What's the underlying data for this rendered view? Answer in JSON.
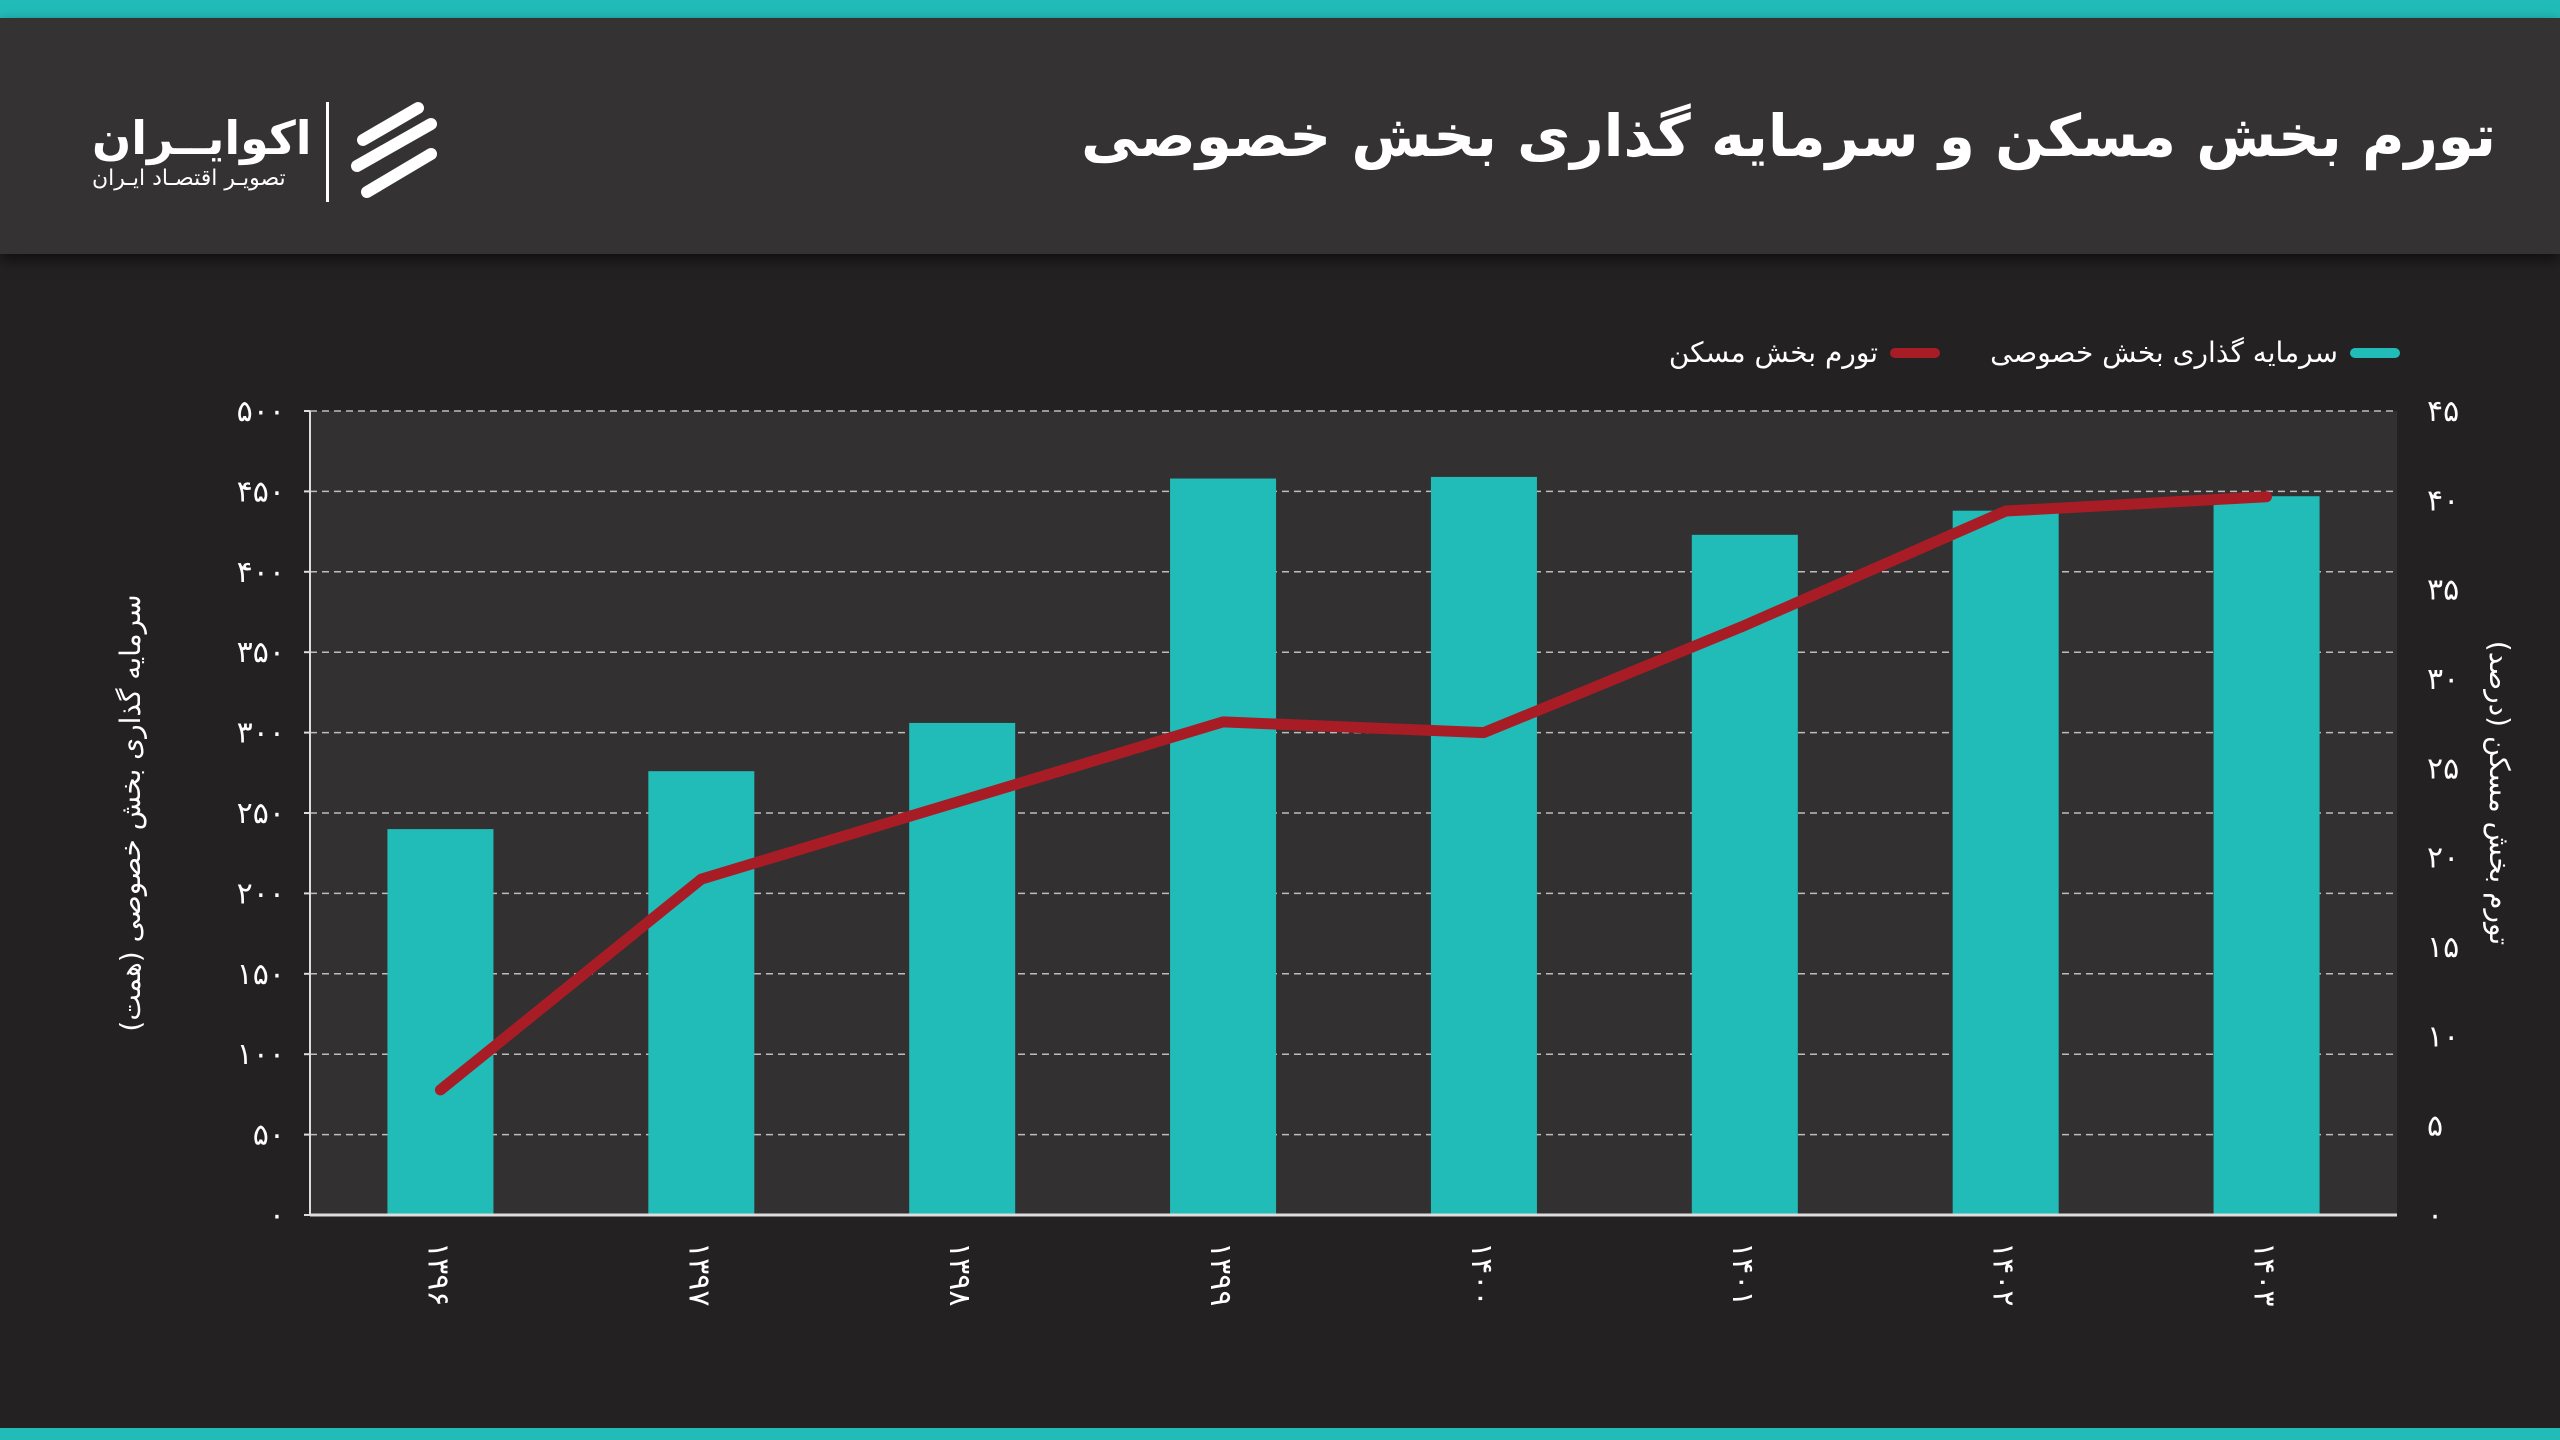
{
  "header": {
    "title": "تورم بخش مسکن و سرمایه گذاری بخش خصوصی",
    "logo_name": "اکوایــران",
    "logo_sub": "تصویـر اقتصـاد ایـران"
  },
  "colors": {
    "bar": "#22bcb8",
    "line": "#a81d25",
    "accent": "#22bcb8",
    "plot_bg": "#333031"
  },
  "chart_data": {
    "type": "bar+line",
    "title": "تورم بخش مسکن و سرمایه گذاری بخش خصوصی",
    "categories": [
      "۱۳۹۶",
      "۱۳۹۷",
      "۱۳۹۸",
      "۱۳۹۹",
      "۱۴۰۰",
      "۱۴۰۱",
      "۱۴۰۲",
      "۱۴۰۳"
    ],
    "series": [
      {
        "name": "سرمایه گذاری بخش خصوصی",
        "type": "bar",
        "axis": "left",
        "values": [
          240,
          276,
          306,
          458,
          459,
          423,
          438,
          447
        ]
      },
      {
        "name": "تورم بخش مسکن",
        "type": "line",
        "axis": "right",
        "values": [
          7,
          18.8,
          23.2,
          27.6,
          27,
          33,
          39.4,
          40.2
        ]
      }
    ],
    "ylabel_left": "سرمایه گذاری بخش خصوصی (همت)",
    "ylabel_right": "تورم بخش مسکن (درصد)",
    "ylim_left": [
      0,
      500
    ],
    "yticks_left": [
      "۰",
      "۵۰",
      "۱۰۰",
      "۱۵۰",
      "۲۰۰",
      "۲۵۰",
      "۳۰۰",
      "۳۵۰",
      "۴۰۰",
      "۴۵۰",
      "۵۰۰"
    ],
    "ylim_right": [
      0,
      45
    ],
    "yticks_right": [
      "۰",
      "۵",
      "۱۰",
      "۱۵",
      "۲۰",
      "۲۵",
      "۳۰",
      "۳۵",
      "۴۰",
      "۴۵"
    ],
    "grid": true,
    "legend": "top-right"
  }
}
